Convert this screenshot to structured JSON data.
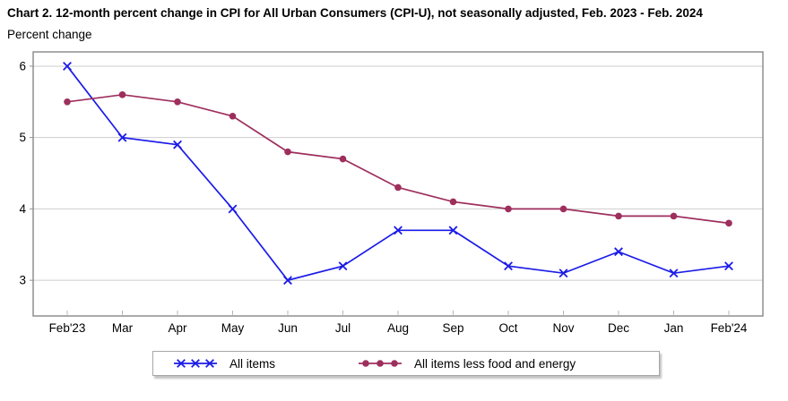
{
  "chart_data": {
    "type": "line",
    "title": "Chart 2. 12-month percent change in CPI for All Urban Consumers (CPI-U), not seasonally adjusted, Feb. 2023 - Feb. 2024",
    "subtitle": "Percent change",
    "categories": [
      "Feb'23",
      "Mar",
      "Apr",
      "May",
      "Jun",
      "Jul",
      "Aug",
      "Sep",
      "Oct",
      "Nov",
      "Dec",
      "Jan",
      "Feb'24"
    ],
    "series": [
      {
        "name": "All items",
        "marker": "x",
        "color": "#1b1be8",
        "values": [
          6.0,
          5.0,
          4.9,
          4.0,
          3.0,
          3.2,
          3.7,
          3.7,
          3.2,
          3.1,
          3.4,
          3.1,
          3.2
        ]
      },
      {
        "name": "All items less food and energy",
        "marker": "dot",
        "color": "#9e2f5d",
        "values": [
          5.5,
          5.6,
          5.5,
          5.3,
          4.8,
          4.7,
          4.3,
          4.1,
          4.0,
          4.0,
          3.9,
          3.9,
          3.8
        ]
      }
    ],
    "xlabel": "",
    "ylabel": "Percent change",
    "yticks": [
      3,
      4,
      5,
      6
    ],
    "ylim": [
      2.5,
      6.2
    ],
    "grid": true,
    "legend_position": "bottom"
  },
  "colors": {
    "grid": "#cdcdcd",
    "plot_border": "#8f8f8f",
    "x_tick": "#b4b4b4",
    "text": "#000000",
    "legend_border": "#a6a6a6"
  }
}
